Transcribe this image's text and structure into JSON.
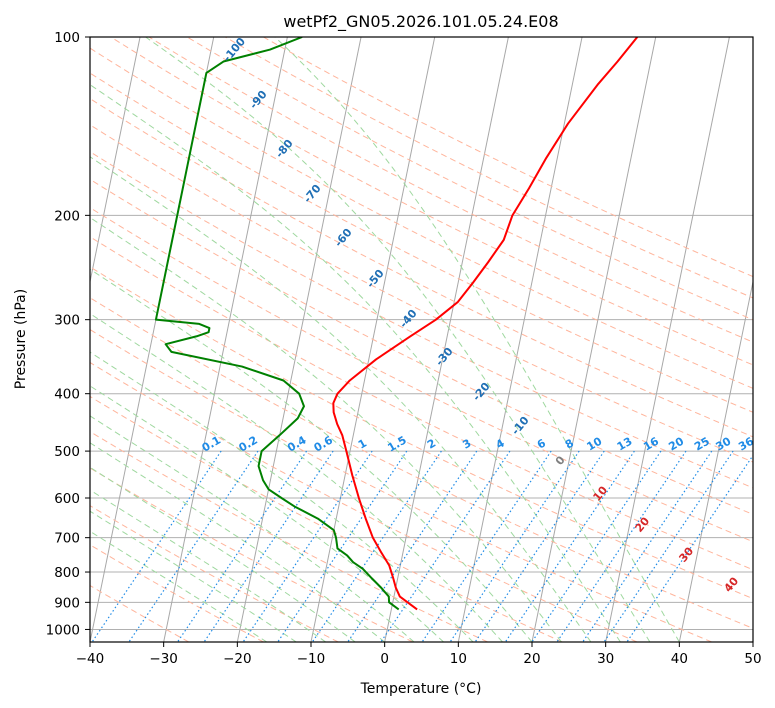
{
  "chart_data": {
    "type": "skew-t",
    "title": "wetPf2_GN05.2026.101.05.24.E08",
    "xlabel": "Temperature (°C)",
    "ylabel": "Pressure (hPa)",
    "xlim": [
      -40,
      50
    ],
    "ylim": [
      1050,
      100
    ],
    "y_scale": "log",
    "grid": true,
    "x_ticks": [
      -40,
      -30,
      -20,
      -10,
      0,
      10,
      20,
      30,
      40,
      50
    ],
    "y_ticks": [
      100,
      200,
      300,
      400,
      500,
      600,
      700,
      800,
      900,
      1000
    ],
    "colors": {
      "temperature": "#ff0000",
      "dewpoint": "#008000",
      "isotherm": "#a8a8a8",
      "dry_adiabat": "#ffb59c",
      "moist_adiabat": "#9fd89f",
      "mixing_ratio": "#1f8be6",
      "isotherm_label": "#1f6fb5",
      "positive_isotherm_label": "#d62728",
      "zero_label": "#808080"
    },
    "series": [
      {
        "key": "temperature",
        "pressure": [
          925,
          880,
          850,
          820,
          780,
          740,
          700,
          650,
          600,
          550,
          500,
          470,
          450,
          430,
          415,
          400,
          380,
          350,
          320,
          300,
          280,
          260,
          240,
          220,
          200,
          180,
          160,
          140,
          120,
          110,
          100
        ],
        "values": [
          3.5,
          0.8,
          0.0,
          -0.6,
          -1.5,
          -3.0,
          -4.5,
          -6.0,
          -7.5,
          -9.0,
          -10.5,
          -11.5,
          -12.5,
          -13.3,
          -13.6,
          -13.3,
          -12.0,
          -9.0,
          -5.0,
          -2.0,
          0.5,
          2.0,
          3.5,
          5.0,
          5.5,
          7.0,
          8.5,
          10.5,
          13.5,
          15.5,
          17.5
        ]
      },
      {
        "key": "dewpoint",
        "pressure": [
          925,
          900,
          880,
          850,
          820,
          790,
          770,
          750,
          730,
          700,
          680,
          650,
          620,
          600,
          580,
          560,
          530,
          500,
          470,
          440,
          420,
          400,
          380,
          360,
          340,
          330,
          320,
          315,
          310,
          305,
          300,
          220,
          170,
          140,
          130,
          120,
          115,
          110,
          105,
          100
        ],
        "values": [
          1.0,
          -0.5,
          -0.7,
          -2.0,
          -3.5,
          -5.0,
          -6.5,
          -7.5,
          -9.0,
          -9.5,
          -10.0,
          -12.5,
          -16.0,
          -18.0,
          -20.0,
          -21.0,
          -22.0,
          -22.0,
          -20.0,
          -18.0,
          -17.5,
          -18.5,
          -21.0,
          -27.0,
          -37.0,
          -38.0,
          -34.0,
          -32.5,
          -32.5,
          -34.0,
          -40.0,
          -40.0,
          -40.0,
          -40.0,
          -40.0,
          -40.0,
          -40.0,
          -38.0,
          -32.0,
          -28.0
        ]
      }
    ],
    "isotherm_labels": [
      "-100",
      "-90",
      "-80",
      "-70",
      "-60",
      "-50",
      "-40",
      "-30",
      "-20",
      "-10",
      "0",
      "10",
      "20",
      "30",
      "40"
    ],
    "mixing_ratio_labels": [
      "0.1",
      "0.2",
      "0.4",
      "0.6",
      "1",
      "1.5",
      "2",
      "3",
      "4",
      "6",
      "8",
      "10",
      "13",
      "16",
      "20",
      "25",
      "30",
      "36"
    ]
  }
}
